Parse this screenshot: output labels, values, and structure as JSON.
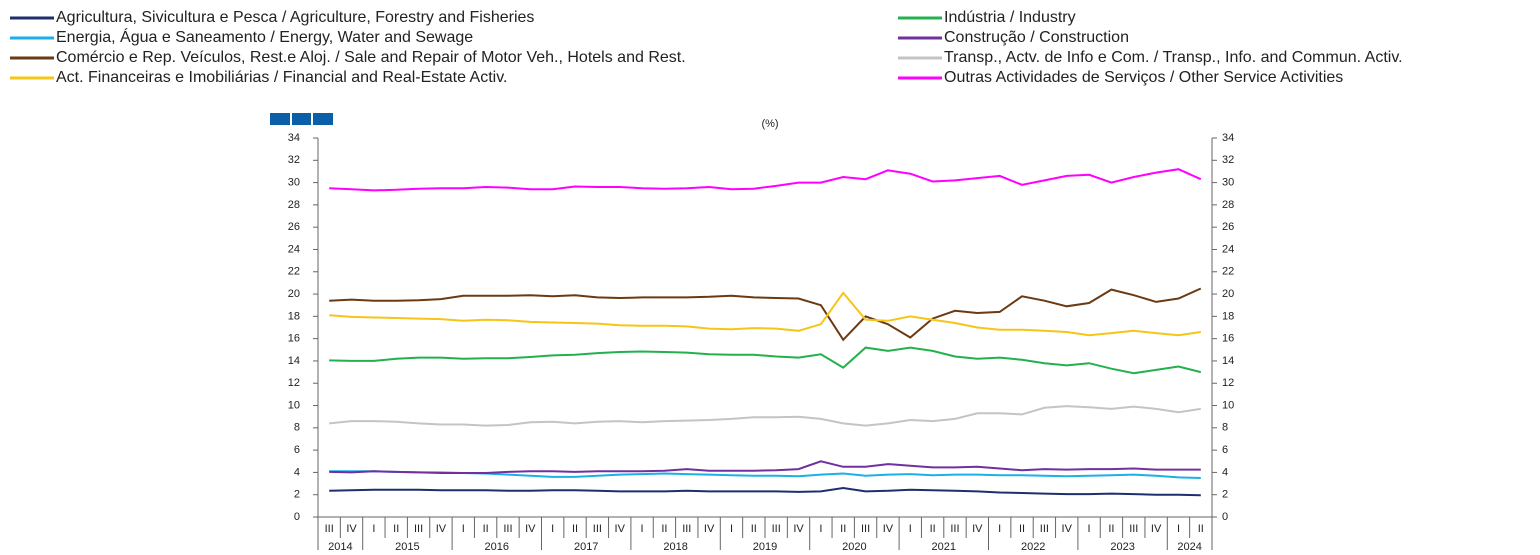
{
  "chart_data": {
    "type": "line",
    "unit_label": "(%)",
    "legend": "top",
    "categories": [
      "III",
      "IV",
      "I",
      "II",
      "III",
      "IV",
      "I",
      "II",
      "III",
      "IV",
      "I",
      "II",
      "III",
      "IV",
      "I",
      "II",
      "III",
      "IV",
      "I",
      "II",
      "III",
      "IV",
      "I",
      "II",
      "III",
      "IV",
      "I",
      "II",
      "III",
      "IV",
      "I",
      "II",
      "III",
      "IV",
      "I",
      "II",
      "III",
      "IV",
      "I",
      "II"
    ],
    "year_labels": [
      "2014",
      "2015",
      "2016",
      "2017",
      "2018",
      "2019",
      "2020",
      "2021",
      "2022",
      "2023",
      "2024"
    ],
    "ylim": [
      0,
      34
    ],
    "yticks": [
      0,
      2,
      4,
      6,
      8,
      10,
      12,
      14,
      16,
      18,
      20,
      22,
      24,
      26,
      28,
      30,
      32,
      34
    ],
    "y2ticks": [
      0,
      2,
      4,
      6,
      8,
      10,
      12,
      14,
      16,
      18,
      20,
      22,
      24,
      26,
      28,
      30,
      32,
      34
    ],
    "series": [
      {
        "name": "Agricultura, Sivicultura e Pesca / Agriculture, Forestry and Fisheries",
        "color": "#1f2f6e",
        "values": [
          2.35,
          2.4,
          2.45,
          2.45,
          2.45,
          2.4,
          2.4,
          2.4,
          2.35,
          2.35,
          2.4,
          2.4,
          2.35,
          2.3,
          2.3,
          2.3,
          2.35,
          2.3,
          2.3,
          2.3,
          2.3,
          2.25,
          2.3,
          2.6,
          2.3,
          2.35,
          2.45,
          2.4,
          2.35,
          2.3,
          2.2,
          2.15,
          2.1,
          2.05,
          2.05,
          2.1,
          2.05,
          2.0,
          2.0,
          1.95
        ]
      },
      {
        "name": "Indústria / Industry",
        "color": "#22b14c",
        "values": [
          14.05,
          14.0,
          14.0,
          14.2,
          14.3,
          14.3,
          14.2,
          14.25,
          14.25,
          14.35,
          14.5,
          14.55,
          14.7,
          14.8,
          14.85,
          14.8,
          14.75,
          14.6,
          14.55,
          14.55,
          14.4,
          14.3,
          14.6,
          13.4,
          15.2,
          14.9,
          15.2,
          14.9,
          14.4,
          14.2,
          14.3,
          14.1,
          13.8,
          13.6,
          13.8,
          13.3,
          12.9,
          13.2,
          13.5,
          13.0
        ]
      },
      {
        "name": "Energia, Água e Saneamento / Energy, Water and Sewage",
        "color": "#1ab0e8",
        "values": [
          4.1,
          4.1,
          4.1,
          4.05,
          4.0,
          4.0,
          3.95,
          3.9,
          3.8,
          3.7,
          3.6,
          3.6,
          3.7,
          3.8,
          3.85,
          3.9,
          3.85,
          3.8,
          3.75,
          3.7,
          3.7,
          3.65,
          3.8,
          3.9,
          3.7,
          3.8,
          3.85,
          3.75,
          3.8,
          3.8,
          3.75,
          3.75,
          3.7,
          3.65,
          3.7,
          3.75,
          3.8,
          3.7,
          3.55,
          3.5
        ]
      },
      {
        "name": "Construção / Construction",
        "color": "#7030a0",
        "values": [
          4.05,
          4.0,
          4.1,
          4.05,
          4.0,
          3.95,
          3.95,
          3.95,
          4.05,
          4.1,
          4.1,
          4.05,
          4.1,
          4.1,
          4.1,
          4.15,
          4.3,
          4.15,
          4.15,
          4.15,
          4.2,
          4.3,
          5.0,
          4.5,
          4.5,
          4.75,
          4.6,
          4.45,
          4.45,
          4.5,
          4.35,
          4.2,
          4.3,
          4.25,
          4.3,
          4.3,
          4.35,
          4.25,
          4.25,
          4.25
        ]
      },
      {
        "name": "Comércio e Rep. Veículos, Rest.e Aloj. / Sale and Repair of Motor Veh., Hotels and Rest.",
        "color": "#6b3a12",
        "values": [
          19.4,
          19.5,
          19.4,
          19.4,
          19.45,
          19.55,
          19.85,
          19.85,
          19.85,
          19.9,
          19.8,
          19.9,
          19.7,
          19.65,
          19.7,
          19.7,
          19.7,
          19.75,
          19.85,
          19.7,
          19.65,
          19.6,
          19.0,
          15.9,
          18.0,
          17.3,
          16.1,
          17.8,
          18.5,
          18.3,
          18.4,
          19.8,
          19.4,
          18.9,
          19.2,
          20.4,
          19.9,
          19.3,
          19.6,
          20.5
        ]
      },
      {
        "name": "Transp., Actv. de Info e Com. / Transp., Info. and Commun. Activ.",
        "color": "#c4c4c4",
        "values": [
          8.4,
          8.6,
          8.6,
          8.55,
          8.4,
          8.3,
          8.3,
          8.2,
          8.25,
          8.5,
          8.55,
          8.4,
          8.55,
          8.6,
          8.5,
          8.6,
          8.65,
          8.7,
          8.8,
          8.95,
          8.95,
          9.0,
          8.8,
          8.4,
          8.2,
          8.4,
          8.7,
          8.6,
          8.8,
          9.3,
          9.3,
          9.2,
          9.8,
          9.95,
          9.85,
          9.7,
          9.9,
          9.7,
          9.4,
          9.7
        ]
      },
      {
        "name": "Act. Financeiras e Imobiliárias / Financial and Real-Estate Activ.",
        "color": "#f5c518",
        "values": [
          18.1,
          17.95,
          17.9,
          17.85,
          17.8,
          17.75,
          17.6,
          17.7,
          17.65,
          17.5,
          17.45,
          17.4,
          17.35,
          17.2,
          17.15,
          17.15,
          17.1,
          16.9,
          16.85,
          16.95,
          16.9,
          16.7,
          17.3,
          20.1,
          17.7,
          17.6,
          18.0,
          17.7,
          17.4,
          17.0,
          16.8,
          16.8,
          16.7,
          16.6,
          16.3,
          16.5,
          16.7,
          16.5,
          16.3,
          16.6
        ]
      },
      {
        "name": "Outras Actividades de Serviços / Other Service Activities",
        "color": "#ff00ff",
        "values": [
          29.5,
          29.4,
          29.3,
          29.35,
          29.45,
          29.5,
          29.5,
          29.6,
          29.55,
          29.4,
          29.4,
          29.65,
          29.6,
          29.6,
          29.5,
          29.45,
          29.5,
          29.6,
          29.4,
          29.45,
          29.7,
          30.0,
          30.0,
          30.5,
          30.3,
          31.1,
          30.8,
          30.1,
          30.2,
          30.4,
          30.6,
          29.8,
          30.2,
          30.6,
          30.7,
          30.0,
          30.5,
          30.9,
          31.2,
          30.3
        ]
      }
    ]
  }
}
